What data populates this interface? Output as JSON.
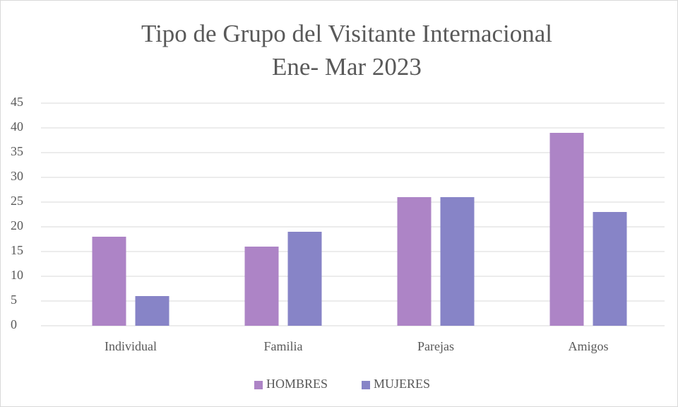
{
  "chart_data": {
    "type": "bar",
    "title": [
      "Tipo de Grupo del Visitante Internacional",
      "Ene- Mar 2023"
    ],
    "categories": [
      "Individual",
      "Familia",
      "Parejas",
      "Amigos"
    ],
    "series": [
      {
        "name": "HOMBRES",
        "color": "#ad84c6",
        "values": [
          18,
          16,
          26,
          39
        ]
      },
      {
        "name": "MUJERES",
        "color": "#8784c7",
        "values": [
          6,
          19,
          26,
          23
        ]
      }
    ],
    "ylim": [
      0,
      45
    ],
    "yticks": [
      0,
      5,
      10,
      15,
      20,
      25,
      30,
      35,
      40,
      45
    ],
    "grid": true,
    "legend": "bottom"
  }
}
